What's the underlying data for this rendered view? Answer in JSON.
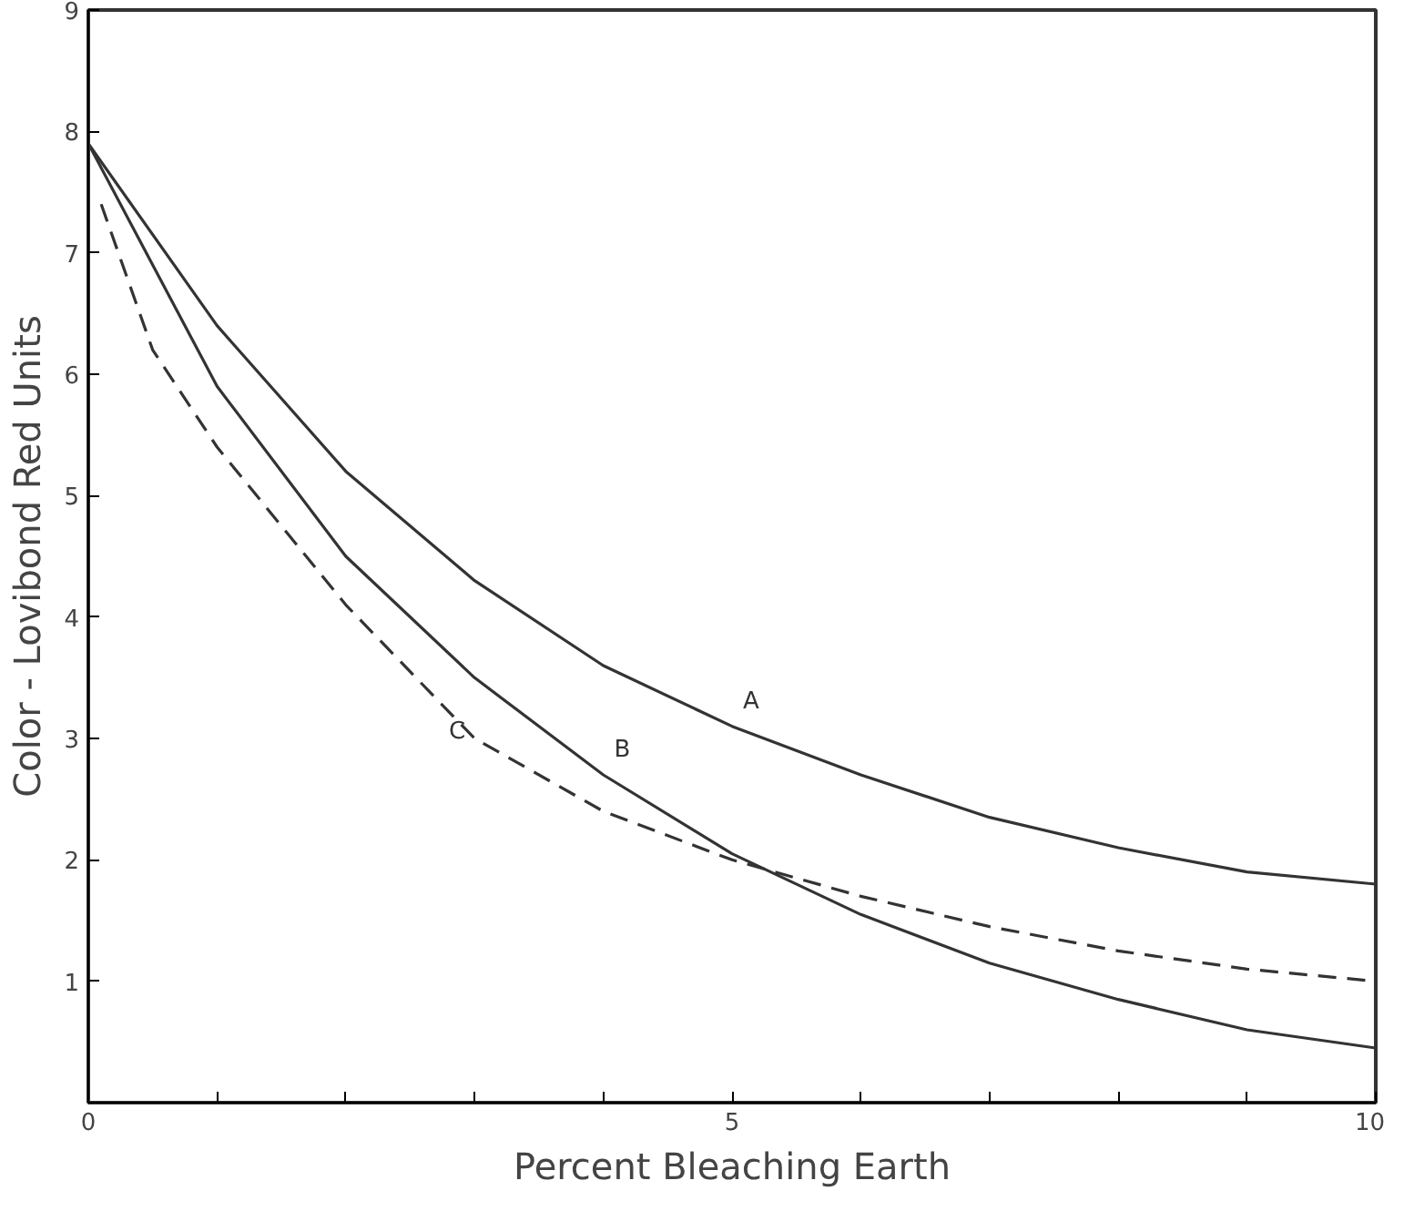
{
  "chart_data": {
    "type": "line",
    "xlabel": "Percent Bleaching Earth",
    "ylabel": "Color - Lovibond Red Units",
    "xlim": [
      0,
      10
    ],
    "ylim": [
      0,
      9
    ],
    "xticks": [
      0,
      {
        "value": 1,
        "label": null
      },
      {
        "value": 2,
        "label": null
      },
      {
        "value": 3,
        "label": null
      },
      {
        "value": 4,
        "label": null
      },
      5,
      {
        "value": 6,
        "label": null
      },
      {
        "value": 7,
        "label": null
      },
      {
        "value": 8,
        "label": null
      },
      {
        "value": 9,
        "label": null
      },
      10
    ],
    "yticks": [
      1,
      2,
      3,
      4,
      5,
      6,
      7,
      8,
      9
    ],
    "grid": false,
    "marker": "none",
    "series": [
      {
        "name": "A",
        "color": "#333333",
        "line_style": "solid",
        "x": [
          0,
          1,
          2,
          3,
          4,
          5,
          6,
          7,
          8,
          9,
          10
        ],
        "values": [
          7.9,
          6.4,
          5.2,
          4.3,
          3.6,
          3.1,
          2.7,
          2.35,
          2.1,
          1.9,
          1.8
        ]
      },
      {
        "name": "B",
        "color": "#333333",
        "line_style": "solid",
        "x": [
          0,
          1,
          2,
          3,
          4,
          5,
          6,
          7,
          8,
          9,
          10
        ],
        "values": [
          7.9,
          5.9,
          4.5,
          3.5,
          2.7,
          2.05,
          1.55,
          1.15,
          0.85,
          0.6,
          0.45
        ]
      },
      {
        "name": "C",
        "color": "#333333",
        "line_style": "dashed",
        "x": [
          0.1,
          0.5,
          1,
          2,
          3,
          4,
          5,
          6,
          7,
          8,
          9,
          10
        ],
        "values": [
          7.4,
          6.2,
          5.4,
          4.1,
          3.0,
          2.4,
          2.0,
          1.7,
          1.45,
          1.25,
          1.1,
          1.0
        ]
      }
    ]
  }
}
